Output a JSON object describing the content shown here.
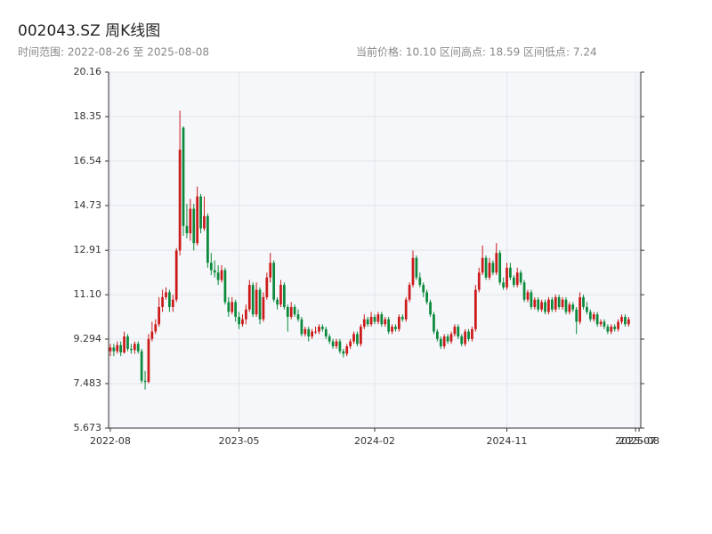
{
  "chart_data": {
    "type": "candlestick",
    "title": "002043.SZ 周K线图",
    "subtitle_left": "时间范围: 2022-08-26 至 2025-08-08",
    "subtitle_right": "当前价格: 10.10  区间高点: 18.59  区间低点: 7.24",
    "up_color": "#cc1a1a",
    "down_color": "#0b8a3c",
    "grid": true,
    "ylim": [
      5.673,
      20.16
    ],
    "yticks": [
      5.673,
      7.483,
      9.294,
      {
        "value": 11.1,
        "label": "11.10"
      },
      12.91,
      14.73,
      16.54,
      18.35,
      20.16
    ],
    "categories": [
      "2022-08",
      null,
      null,
      null,
      null,
      null,
      null,
      null,
      null,
      null,
      null,
      null,
      null,
      null,
      null,
      null,
      null,
      null,
      null,
      null,
      null,
      null,
      null,
      null,
      null,
      null,
      null,
      null,
      null,
      null,
      null,
      null,
      null,
      null,
      null,
      null,
      null,
      "2023-05",
      null,
      null,
      null,
      null,
      null,
      null,
      null,
      null,
      null,
      null,
      null,
      null,
      null,
      null,
      null,
      null,
      null,
      null,
      null,
      null,
      null,
      null,
      null,
      null,
      null,
      null,
      null,
      null,
      null,
      null,
      null,
      null,
      null,
      null,
      null,
      null,
      null,
      null,
      "2024-02",
      null,
      null,
      null,
      null,
      null,
      null,
      null,
      null,
      null,
      null,
      null,
      null,
      null,
      null,
      null,
      null,
      null,
      null,
      null,
      null,
      null,
      null,
      null,
      null,
      null,
      null,
      null,
      null,
      null,
      null,
      null,
      null,
      null,
      null,
      null,
      null,
      null,
      "2024-11",
      null,
      null,
      null,
      null,
      null,
      null,
      null,
      null,
      null,
      null,
      null,
      null,
      null,
      null,
      null,
      null,
      null,
      null,
      null,
      null,
      null,
      null,
      null,
      null,
      null,
      null,
      null,
      null,
      null,
      null,
      null,
      null,
      null,
      null,
      null,
      null,
      "2025-07",
      "2025-08"
    ],
    "candles": [
      {
        "o": 8.8,
        "h": 9.1,
        "l": 8.6,
        "c": 8.95
      },
      {
        "o": 8.95,
        "h": 9.1,
        "l": 8.6,
        "c": 8.8
      },
      {
        "o": 8.8,
        "h": 9.2,
        "l": 8.7,
        "c": 9.05
      },
      {
        "o": 9.05,
        "h": 9.2,
        "l": 8.6,
        "c": 8.75
      },
      {
        "o": 8.75,
        "h": 9.6,
        "l": 8.7,
        "c": 9.4
      },
      {
        "o": 9.4,
        "h": 9.5,
        "l": 8.8,
        "c": 8.9
      },
      {
        "o": 8.9,
        "h": 9.1,
        "l": 8.7,
        "c": 8.85
      },
      {
        "o": 8.85,
        "h": 9.2,
        "l": 8.7,
        "c": 9.1
      },
      {
        "o": 9.1,
        "h": 9.2,
        "l": 8.7,
        "c": 8.8
      },
      {
        "o": 8.8,
        "h": 8.9,
        "l": 7.5,
        "c": 7.6
      },
      {
        "o": 7.6,
        "h": 8.0,
        "l": 7.24,
        "c": 7.55
      },
      {
        "o": 7.55,
        "h": 9.5,
        "l": 7.5,
        "c": 9.3
      },
      {
        "o": 9.3,
        "h": 10.0,
        "l": 9.2,
        "c": 9.6
      },
      {
        "o": 9.6,
        "h": 10.1,
        "l": 9.5,
        "c": 9.9
      },
      {
        "o": 9.9,
        "h": 11.0,
        "l": 9.8,
        "c": 10.6
      },
      {
        "o": 10.6,
        "h": 11.3,
        "l": 10.4,
        "c": 11.0
      },
      {
        "o": 11.0,
        "h": 11.4,
        "l": 10.9,
        "c": 11.2
      },
      {
        "o": 11.2,
        "h": 11.3,
        "l": 10.4,
        "c": 10.6
      },
      {
        "o": 10.6,
        "h": 11.1,
        "l": 10.4,
        "c": 10.9
      },
      {
        "o": 10.9,
        "h": 13.0,
        "l": 10.8,
        "c": 12.9
      },
      {
        "o": 12.9,
        "h": 18.59,
        "l": 12.7,
        "c": 17.0
      },
      {
        "o": 17.9,
        "h": 17.95,
        "l": 13.5,
        "c": 13.9
      },
      {
        "o": 13.9,
        "h": 14.8,
        "l": 13.4,
        "c": 13.6
      },
      {
        "o": 13.6,
        "h": 15.0,
        "l": 13.3,
        "c": 14.6
      },
      {
        "o": 14.6,
        "h": 14.8,
        "l": 12.9,
        "c": 13.2
      },
      {
        "o": 13.2,
        "h": 15.5,
        "l": 13.1,
        "c": 15.1
      },
      {
        "o": 15.1,
        "h": 15.2,
        "l": 13.6,
        "c": 13.8
      },
      {
        "o": 13.8,
        "h": 15.1,
        "l": 13.7,
        "c": 14.3
      },
      {
        "o": 14.3,
        "h": 14.4,
        "l": 12.2,
        "c": 12.4
      },
      {
        "o": 12.4,
        "h": 12.8,
        "l": 11.9,
        "c": 12.1
      },
      {
        "o": 12.1,
        "h": 12.5,
        "l": 11.8,
        "c": 12.0
      },
      {
        "o": 12.0,
        "h": 12.3,
        "l": 11.5,
        "c": 11.7
      },
      {
        "o": 11.7,
        "h": 12.3,
        "l": 11.6,
        "c": 12.1
      },
      {
        "o": 12.1,
        "h": 12.2,
        "l": 10.7,
        "c": 10.8
      },
      {
        "o": 10.8,
        "h": 11.0,
        "l": 10.2,
        "c": 10.4
      },
      {
        "o": 10.4,
        "h": 11.0,
        "l": 10.3,
        "c": 10.8
      },
      {
        "o": 10.8,
        "h": 10.9,
        "l": 10.0,
        "c": 10.2
      },
      {
        "o": 10.2,
        "h": 10.4,
        "l": 9.7,
        "c": 9.9
      },
      {
        "o": 9.9,
        "h": 10.3,
        "l": 9.8,
        "c": 10.1
      },
      {
        "o": 10.1,
        "h": 10.7,
        "l": 9.9,
        "c": 10.5
      },
      {
        "o": 10.5,
        "h": 11.7,
        "l": 10.4,
        "c": 11.5
      },
      {
        "o": 11.5,
        "h": 11.6,
        "l": 10.2,
        "c": 10.3
      },
      {
        "o": 10.3,
        "h": 11.6,
        "l": 10.2,
        "c": 11.3
      },
      {
        "o": 11.3,
        "h": 11.4,
        "l": 9.9,
        "c": 10.1
      },
      {
        "o": 10.1,
        "h": 11.2,
        "l": 10.0,
        "c": 11.0
      },
      {
        "o": 11.0,
        "h": 12.0,
        "l": 10.9,
        "c": 11.8
      },
      {
        "o": 11.8,
        "h": 12.8,
        "l": 11.6,
        "c": 12.4
      },
      {
        "o": 12.4,
        "h": 12.5,
        "l": 10.8,
        "c": 10.9
      },
      {
        "o": 10.9,
        "h": 11.0,
        "l": 10.5,
        "c": 10.7
      },
      {
        "o": 10.7,
        "h": 11.7,
        "l": 10.6,
        "c": 11.5
      },
      {
        "o": 11.5,
        "h": 11.6,
        "l": 10.5,
        "c": 10.6
      },
      {
        "o": 10.6,
        "h": 10.7,
        "l": 9.6,
        "c": 10.2
      },
      {
        "o": 10.2,
        "h": 10.8,
        "l": 10.1,
        "c": 10.6
      },
      {
        "o": 10.6,
        "h": 10.7,
        "l": 10.2,
        "c": 10.3
      },
      {
        "o": 10.3,
        "h": 10.5,
        "l": 10.0,
        "c": 10.1
      },
      {
        "o": 10.1,
        "h": 10.2,
        "l": 9.4,
        "c": 9.5
      },
      {
        "o": 9.5,
        "h": 9.8,
        "l": 9.4,
        "c": 9.7
      },
      {
        "o": 9.7,
        "h": 9.8,
        "l": 9.2,
        "c": 9.4
      },
      {
        "o": 9.4,
        "h": 9.7,
        "l": 9.3,
        "c": 9.6
      },
      {
        "o": 9.6,
        "h": 9.8,
        "l": 9.5,
        "c": 9.6
      },
      {
        "o": 9.6,
        "h": 9.9,
        "l": 9.5,
        "c": 9.8
      },
      {
        "o": 9.8,
        "h": 9.9,
        "l": 9.6,
        "c": 9.7
      },
      {
        "o": 9.7,
        "h": 9.8,
        "l": 9.3,
        "c": 9.4
      },
      {
        "o": 9.4,
        "h": 9.5,
        "l": 9.1,
        "c": 9.2
      },
      {
        "o": 9.2,
        "h": 9.3,
        "l": 8.9,
        "c": 9.0
      },
      {
        "o": 9.0,
        "h": 9.3,
        "l": 8.9,
        "c": 9.2
      },
      {
        "o": 9.2,
        "h": 9.3,
        "l": 8.7,
        "c": 8.8
      },
      {
        "o": 8.8,
        "h": 8.9,
        "l": 8.55,
        "c": 8.7
      },
      {
        "o": 8.7,
        "h": 9.1,
        "l": 8.6,
        "c": 9.0
      },
      {
        "o": 9.0,
        "h": 9.3,
        "l": 8.9,
        "c": 9.2
      },
      {
        "o": 9.2,
        "h": 9.6,
        "l": 9.1,
        "c": 9.5
      },
      {
        "o": 9.5,
        "h": 9.6,
        "l": 9.0,
        "c": 9.1
      },
      {
        "o": 9.1,
        "h": 9.9,
        "l": 9.0,
        "c": 9.8
      },
      {
        "o": 9.8,
        "h": 10.3,
        "l": 9.7,
        "c": 10.1
      },
      {
        "o": 10.1,
        "h": 10.2,
        "l": 9.8,
        "c": 9.9
      },
      {
        "o": 9.9,
        "h": 10.4,
        "l": 9.8,
        "c": 10.2
      },
      {
        "o": 10.2,
        "h": 10.3,
        "l": 9.9,
        "c": 10.0
      },
      {
        "o": 10.0,
        "h": 10.4,
        "l": 9.9,
        "c": 10.3
      },
      {
        "o": 10.3,
        "h": 10.4,
        "l": 9.8,
        "c": 9.9
      },
      {
        "o": 9.9,
        "h": 10.2,
        "l": 9.8,
        "c": 10.1
      },
      {
        "o": 10.1,
        "h": 10.2,
        "l": 9.5,
        "c": 9.6
      },
      {
        "o": 9.6,
        "h": 9.9,
        "l": 9.5,
        "c": 9.8
      },
      {
        "o": 9.8,
        "h": 9.9,
        "l": 9.6,
        "c": 9.7
      },
      {
        "o": 9.7,
        "h": 10.3,
        "l": 9.6,
        "c": 10.2
      },
      {
        "o": 10.2,
        "h": 10.3,
        "l": 10.0,
        "c": 10.1
      },
      {
        "o": 10.1,
        "h": 11.0,
        "l": 10.0,
        "c": 10.9
      },
      {
        "o": 10.9,
        "h": 11.6,
        "l": 10.8,
        "c": 11.5
      },
      {
        "o": 11.5,
        "h": 12.9,
        "l": 11.4,
        "c": 12.6
      },
      {
        "o": 12.6,
        "h": 12.7,
        "l": 11.7,
        "c": 11.8
      },
      {
        "o": 11.8,
        "h": 12.0,
        "l": 11.4,
        "c": 11.5
      },
      {
        "o": 11.5,
        "h": 11.6,
        "l": 11.0,
        "c": 11.2
      },
      {
        "o": 11.2,
        "h": 11.3,
        "l": 10.7,
        "c": 10.8
      },
      {
        "o": 10.8,
        "h": 10.9,
        "l": 10.2,
        "c": 10.3
      },
      {
        "o": 10.3,
        "h": 10.4,
        "l": 9.5,
        "c": 9.6
      },
      {
        "o": 9.6,
        "h": 9.7,
        "l": 9.2,
        "c": 9.3
      },
      {
        "o": 9.3,
        "h": 9.4,
        "l": 8.9,
        "c": 9.0
      },
      {
        "o": 9.0,
        "h": 9.5,
        "l": 8.9,
        "c": 9.4
      },
      {
        "o": 9.4,
        "h": 9.5,
        "l": 9.1,
        "c": 9.2
      },
      {
        "o": 9.2,
        "h": 9.6,
        "l": 9.1,
        "c": 9.5
      },
      {
        "o": 9.5,
        "h": 9.9,
        "l": 9.4,
        "c": 9.8
      },
      {
        "o": 9.8,
        "h": 9.9,
        "l": 9.3,
        "c": 9.4
      },
      {
        "o": 9.4,
        "h": 9.5,
        "l": 9.0,
        "c": 9.1
      },
      {
        "o": 9.1,
        "h": 9.7,
        "l": 9.0,
        "c": 9.6
      },
      {
        "o": 9.6,
        "h": 9.7,
        "l": 9.2,
        "c": 9.3
      },
      {
        "o": 9.3,
        "h": 9.8,
        "l": 9.2,
        "c": 9.7
      },
      {
        "o": 9.7,
        "h": 11.5,
        "l": 9.6,
        "c": 11.3
      },
      {
        "o": 11.3,
        "h": 12.2,
        "l": 11.2,
        "c": 12.0
      },
      {
        "o": 12.0,
        "h": 13.1,
        "l": 11.9,
        "c": 12.6
      },
      {
        "o": 12.6,
        "h": 12.7,
        "l": 11.7,
        "c": 11.8
      },
      {
        "o": 11.8,
        "h": 12.6,
        "l": 11.7,
        "c": 12.4
      },
      {
        "o": 12.4,
        "h": 12.5,
        "l": 11.9,
        "c": 12.0
      },
      {
        "o": 12.0,
        "h": 13.2,
        "l": 11.9,
        "c": 12.8
      },
      {
        "o": 12.8,
        "h": 12.9,
        "l": 11.5,
        "c": 11.6
      },
      {
        "o": 11.6,
        "h": 11.8,
        "l": 11.3,
        "c": 11.4
      },
      {
        "o": 11.4,
        "h": 12.4,
        "l": 11.3,
        "c": 12.2
      },
      {
        "o": 12.2,
        "h": 12.4,
        "l": 11.7,
        "c": 11.8
      },
      {
        "o": 11.8,
        "h": 11.9,
        "l": 11.4,
        "c": 11.5
      },
      {
        "o": 11.5,
        "h": 12.2,
        "l": 11.4,
        "c": 12.0
      },
      {
        "o": 12.0,
        "h": 12.1,
        "l": 11.5,
        "c": 11.6
      },
      {
        "o": 11.6,
        "h": 11.7,
        "l": 10.8,
        "c": 10.9
      },
      {
        "o": 10.9,
        "h": 11.3,
        "l": 10.8,
        "c": 11.2
      },
      {
        "o": 11.2,
        "h": 11.3,
        "l": 10.5,
        "c": 10.6
      },
      {
        "o": 10.6,
        "h": 11.0,
        "l": 10.5,
        "c": 10.9
      },
      {
        "o": 10.9,
        "h": 11.0,
        "l": 10.4,
        "c": 10.5
      },
      {
        "o": 10.5,
        "h": 10.9,
        "l": 10.4,
        "c": 10.8
      },
      {
        "o": 10.8,
        "h": 10.9,
        "l": 10.3,
        "c": 10.4
      },
      {
        "o": 10.4,
        "h": 11.0,
        "l": 10.3,
        "c": 10.9
      },
      {
        "o": 10.9,
        "h": 11.0,
        "l": 10.4,
        "c": 10.5
      },
      {
        "o": 10.5,
        "h": 11.1,
        "l": 10.4,
        "c": 11.0
      },
      {
        "o": 11.0,
        "h": 11.1,
        "l": 10.5,
        "c": 10.6
      },
      {
        "o": 10.6,
        "h": 11.0,
        "l": 10.5,
        "c": 10.9
      },
      {
        "o": 10.9,
        "h": 11.0,
        "l": 10.3,
        "c": 10.4
      },
      {
        "o": 10.4,
        "h": 10.8,
        "l": 10.3,
        "c": 10.7
      },
      {
        "o": 10.7,
        "h": 10.8,
        "l": 10.4,
        "c": 10.5
      },
      {
        "o": 10.5,
        "h": 10.6,
        "l": 9.5,
        "c": 10.0
      },
      {
        "o": 10.0,
        "h": 11.2,
        "l": 9.9,
        "c": 11.0
      },
      {
        "o": 11.0,
        "h": 11.1,
        "l": 10.5,
        "c": 10.6
      },
      {
        "o": 10.6,
        "h": 10.8,
        "l": 10.3,
        "c": 10.4
      },
      {
        "o": 10.4,
        "h": 10.5,
        "l": 10.0,
        "c": 10.1
      },
      {
        "o": 10.1,
        "h": 10.4,
        "l": 10.0,
        "c": 10.3
      },
      {
        "o": 10.3,
        "h": 10.4,
        "l": 9.8,
        "c": 9.9
      },
      {
        "o": 9.9,
        "h": 10.1,
        "l": 9.8,
        "c": 10.0
      },
      {
        "o": 10.0,
        "h": 10.1,
        "l": 9.7,
        "c": 9.8
      },
      {
        "o": 9.8,
        "h": 9.9,
        "l": 9.5,
        "c": 9.6
      },
      {
        "o": 9.6,
        "h": 9.9,
        "l": 9.5,
        "c": 9.8
      },
      {
        "o": 9.8,
        "h": 9.9,
        "l": 9.6,
        "c": 9.7
      },
      {
        "o": 9.7,
        "h": 10.1,
        "l": 9.6,
        "c": 10.0
      },
      {
        "o": 10.0,
        "h": 10.3,
        "l": 9.9,
        "c": 10.2
      },
      {
        "o": 10.2,
        "h": 10.3,
        "l": 9.8,
        "c": 9.9
      },
      {
        "o": 9.9,
        "h": 10.2,
        "l": 9.8,
        "c": 10.1
      }
    ]
  }
}
